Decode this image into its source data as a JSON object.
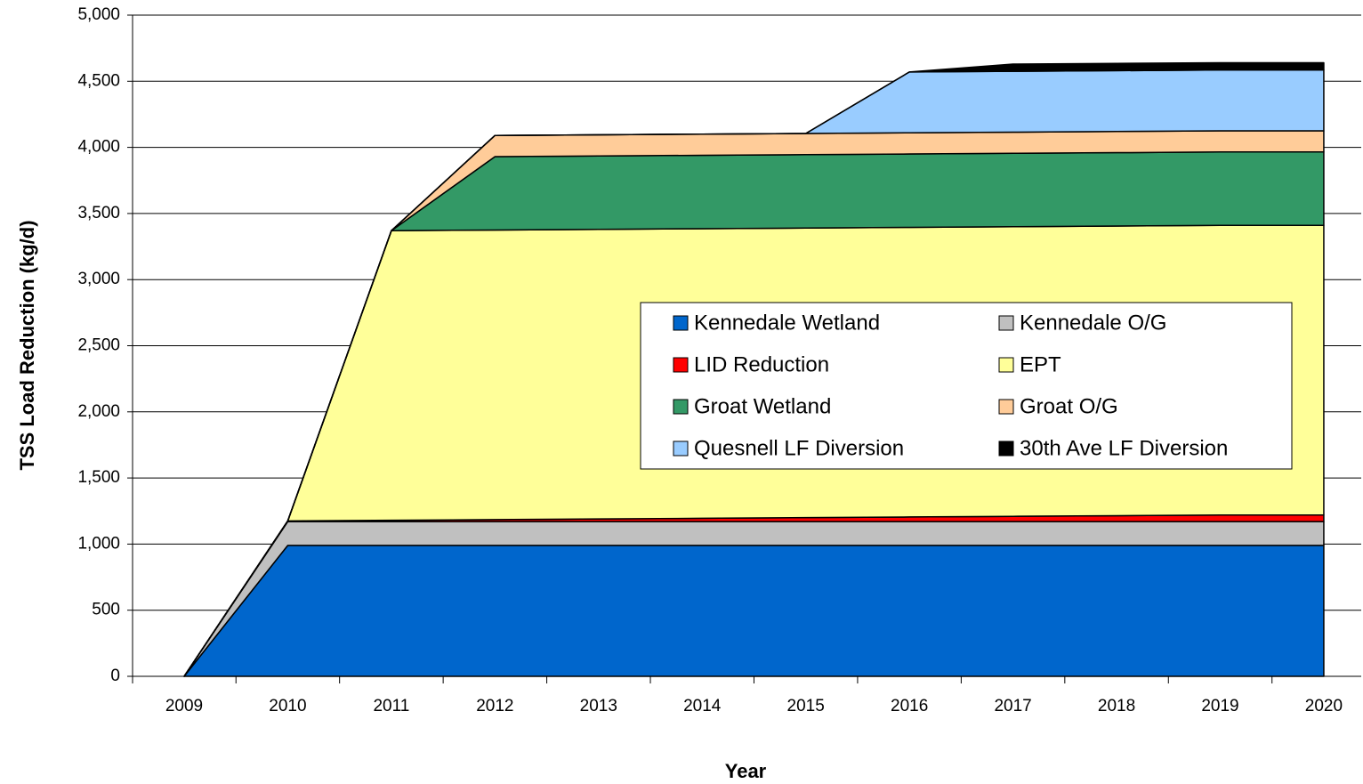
{
  "chart_data": {
    "type": "stacked_area",
    "xlabel": "Year",
    "ylabel": "TSS Load Reduction (kg/d)",
    "categories": [
      "2009",
      "2010",
      "2011",
      "2012",
      "2013",
      "2014",
      "2015",
      "2016",
      "2017",
      "2018",
      "2019",
      "2020"
    ],
    "series": [
      {
        "name": "Kennedale Wetland",
        "color": "#0066cc",
        "values": [
          0,
          990,
          990,
          990,
          990,
          990,
          990,
          990,
          990,
          990,
          990,
          990
        ]
      },
      {
        "name": "Kennedale O/G",
        "color": "#c0c0c0",
        "values": [
          0,
          180,
          180,
          180,
          180,
          180,
          180,
          180,
          180,
          180,
          180,
          180
        ]
      },
      {
        "name": "LID Reduction",
        "color": "#ff0000",
        "values": [
          0,
          5,
          10,
          15,
          20,
          25,
          30,
          35,
          40,
          45,
          50,
          50
        ]
      },
      {
        "name": "EPT",
        "color": "#ffff99",
        "values": [
          0,
          0,
          2190,
          2190,
          2190,
          2190,
          2190,
          2190,
          2190,
          2190,
          2190,
          2190
        ]
      },
      {
        "name": "Groat Wetland",
        "color": "#339966",
        "values": [
          0,
          0,
          0,
          555,
          555,
          555,
          555,
          555,
          555,
          555,
          555,
          555
        ]
      },
      {
        "name": "Groat O/G",
        "color": "#ffcc99",
        "values": [
          0,
          0,
          0,
          160,
          160,
          160,
          160,
          160,
          160,
          160,
          160,
          160
        ]
      },
      {
        "name": "Quesnell LF Diversion",
        "color": "#99ccff",
        "values": [
          0,
          0,
          0,
          0,
          0,
          0,
          0,
          460,
          460,
          460,
          460,
          460
        ]
      },
      {
        "name": "30th Ave LF Diversion",
        "color": "#000000",
        "values": [
          0,
          0,
          0,
          0,
          0,
          0,
          0,
          0,
          55,
          55,
          55,
          55
        ]
      }
    ],
    "ylim": [
      0,
      5000
    ],
    "yticks": [
      0,
      500,
      {
        "value": 1000,
        "label": "1,000"
      },
      {
        "value": 1500,
        "label": "1,500"
      },
      {
        "value": 2000,
        "label": "2,000"
      },
      {
        "value": 2500,
        "label": "2,500"
      },
      {
        "value": 3000,
        "label": "3,000"
      },
      {
        "value": 3500,
        "label": "3,500"
      },
      {
        "value": 4000,
        "label": "4,000"
      },
      {
        "value": 4500,
        "label": "4,500"
      },
      {
        "value": 5000,
        "label": "5,000"
      }
    ],
    "grid": true
  }
}
